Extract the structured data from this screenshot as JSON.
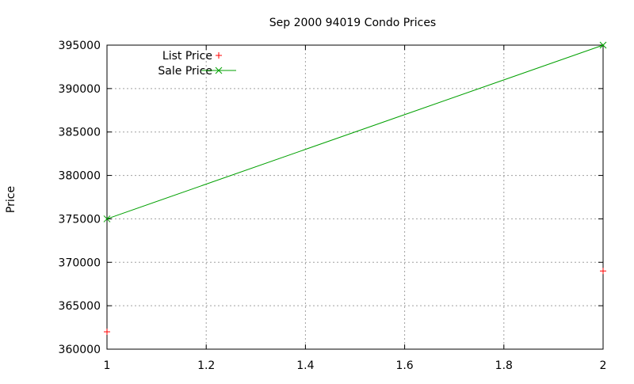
{
  "chart_data": {
    "type": "line",
    "title": "Sep 2000 94019 Condo Prices",
    "xlabel": "",
    "ylabel": "Price",
    "xlim": [
      1,
      2
    ],
    "ylim": [
      360000,
      395000
    ],
    "x_ticks": [
      "1",
      "1.2",
      "1.4",
      "1.6",
      "1.8",
      "2"
    ],
    "y_ticks": [
      "360000",
      "365000",
      "370000",
      "375000",
      "380000",
      "385000",
      "390000",
      "395000"
    ],
    "grid": true,
    "legend_position": "top-left",
    "series": [
      {
        "name": "List Price",
        "style": "points",
        "marker": "+",
        "color": "#ff0000",
        "x": [
          1,
          2
        ],
        "y": [
          362000,
          369000
        ]
      },
      {
        "name": "Sale Price",
        "style": "linespoints",
        "marker": "x",
        "color": "#00a000",
        "x": [
          1,
          2
        ],
        "y": [
          375000,
          395000
        ]
      }
    ]
  }
}
